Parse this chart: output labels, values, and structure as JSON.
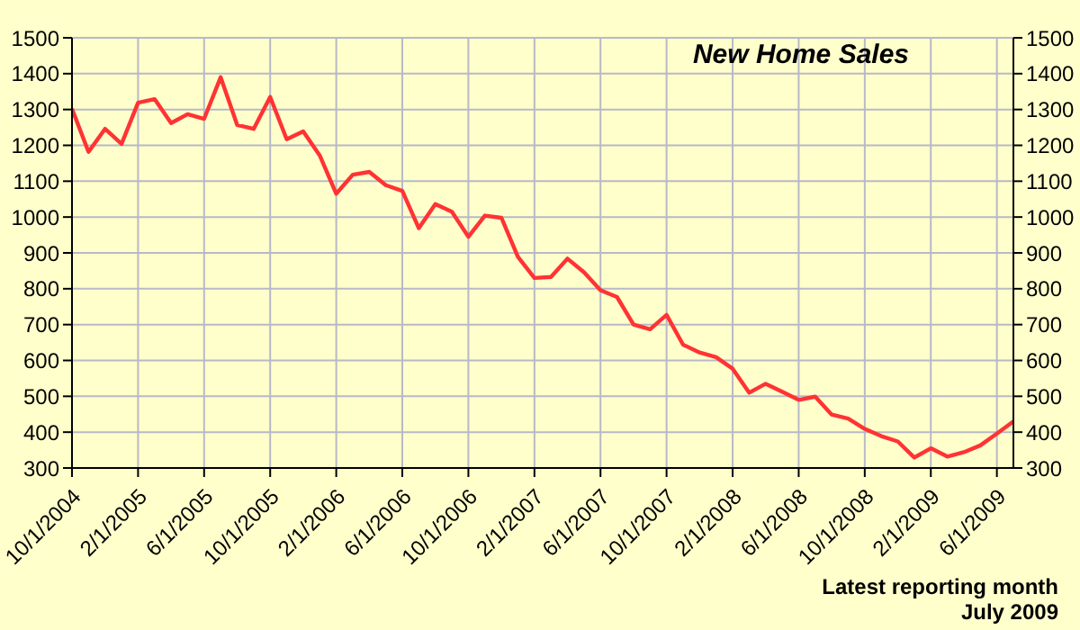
{
  "chart_data": {
    "type": "line",
    "title": "New Home Sales",
    "annotations": [
      "Latest reporting month",
      "July 2009"
    ],
    "x": [
      "2004-10-01",
      "2004-11-01",
      "2004-12-01",
      "2005-01-01",
      "2005-02-01",
      "2005-03-01",
      "2005-04-01",
      "2005-05-01",
      "2005-06-01",
      "2005-07-01",
      "2005-08-01",
      "2005-09-01",
      "2005-10-01",
      "2005-11-01",
      "2005-12-01",
      "2006-01-01",
      "2006-02-01",
      "2006-03-01",
      "2006-04-01",
      "2006-05-01",
      "2006-06-01",
      "2006-07-01",
      "2006-08-01",
      "2006-09-01",
      "2006-10-01",
      "2006-11-01",
      "2006-12-01",
      "2007-01-01",
      "2007-02-01",
      "2007-03-01",
      "2007-04-01",
      "2007-05-01",
      "2007-06-01",
      "2007-07-01",
      "2007-08-01",
      "2007-09-01",
      "2007-10-01",
      "2007-11-01",
      "2007-12-01",
      "2008-01-01",
      "2008-02-01",
      "2008-03-01",
      "2008-04-01",
      "2008-05-01",
      "2008-06-01",
      "2008-07-01",
      "2008-08-01",
      "2008-09-01",
      "2008-10-01",
      "2008-11-01",
      "2008-12-01",
      "2009-01-01",
      "2009-02-01",
      "2009-03-01",
      "2009-04-01",
      "2009-05-01",
      "2009-06-01",
      "2009-07-01"
    ],
    "series": [
      {
        "color": "#ff3333",
        "values": [
          1302,
          1182,
          1246,
          1204,
          1319,
          1329,
          1262,
          1287,
          1274,
          1390,
          1257,
          1246,
          1335,
          1217,
          1239,
          1172,
          1065,
          1118,
          1126,
          1089,
          1073,
          969,
          1036,
          1015,
          945,
          1004,
          998,
          889,
          830,
          833,
          884,
          846,
          796,
          777,
          700,
          687,
          727,
          644,
          622,
          609,
          577,
          510,
          535,
          513,
          490,
          499,
          449,
          438,
          409,
          389,
          374,
          329,
          355,
          332,
          344,
          363,
          396,
          430
        ]
      }
    ],
    "xlim": [
      "2004-10-01",
      "2009-07-01"
    ],
    "xticks": [
      {
        "value": "2004-10-01",
        "label": "10/1/2004"
      },
      {
        "value": "2005-02-01",
        "label": "2/1/2005"
      },
      {
        "value": "2005-06-01",
        "label": "6/1/2005"
      },
      {
        "value": "2005-10-01",
        "label": "10/1/2005"
      },
      {
        "value": "2006-02-01",
        "label": "2/1/2006"
      },
      {
        "value": "2006-06-01",
        "label": "6/1/2006"
      },
      {
        "value": "2006-10-01",
        "label": "10/1/2006"
      },
      {
        "value": "2007-02-01",
        "label": "2/1/2007"
      },
      {
        "value": "2007-06-01",
        "label": "6/1/2007"
      },
      {
        "value": "2007-10-01",
        "label": "10/1/2007"
      },
      {
        "value": "2008-02-01",
        "label": "2/1/2008"
      },
      {
        "value": "2008-06-01",
        "label": "6/1/2008"
      },
      {
        "value": "2008-10-01",
        "label": "10/1/2008"
      },
      {
        "value": "2009-02-01",
        "label": "2/1/2009"
      },
      {
        "value": "2009-06-01",
        "label": "6/1/2009"
      }
    ],
    "ylim": [
      300,
      1500
    ],
    "yticks": [
      300,
      400,
      500,
      600,
      700,
      800,
      900,
      1000,
      1100,
      1200,
      1300,
      1400,
      1500
    ],
    "y2lim": [
      300,
      1500
    ],
    "y2ticks": [
      300,
      400,
      500,
      600,
      700,
      800,
      900,
      1000,
      1100,
      1200,
      1300,
      1400,
      1500
    ],
    "grid": true,
    "marker": "none",
    "line_style": "solid"
  }
}
